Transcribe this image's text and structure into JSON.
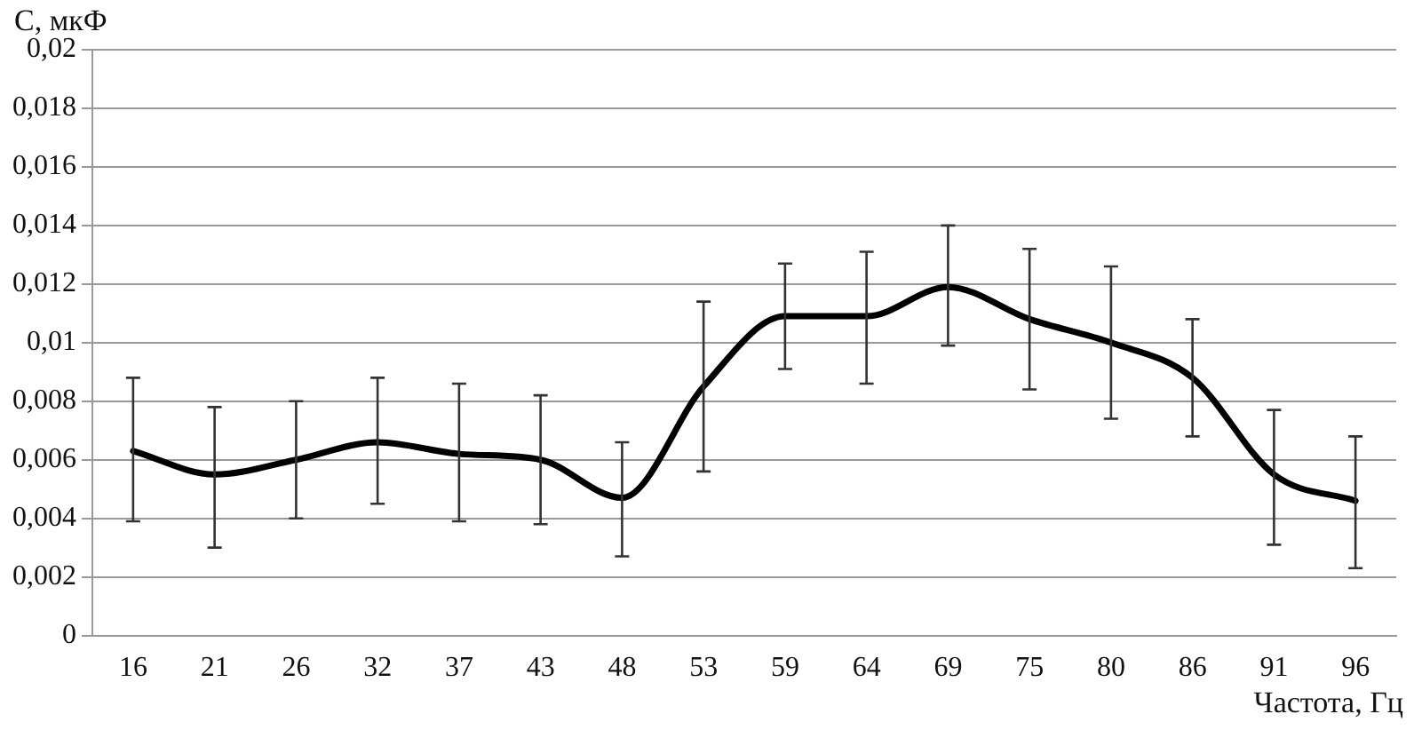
{
  "chart_data": {
    "type": "line",
    "xlabel": "Частота, Гц",
    "ylabel": "С, мкФ",
    "categories": [
      "16",
      "21",
      "26",
      "32",
      "37",
      "43",
      "48",
      "53",
      "59",
      "64",
      "69",
      "75",
      "80",
      "86",
      "91",
      "96"
    ],
    "series": [
      {
        "color": "#000000",
        "values": [
          0.0063,
          0.0055,
          0.006,
          0.0066,
          0.0062,
          0.006,
          0.0047,
          0.0085,
          0.0109,
          0.0109,
          0.0119,
          0.0108,
          0.01,
          0.0088,
          0.0055,
          0.0046
        ],
        "errors": [
          [
            0.0039,
            0.0088
          ],
          [
            0.003,
            0.0078
          ],
          [
            0.004,
            0.008
          ],
          [
            0.0045,
            0.0088
          ],
          [
            0.0039,
            0.0086
          ],
          [
            0.0038,
            0.0082
          ],
          [
            0.0027,
            0.0066
          ],
          [
            0.0056,
            0.0114
          ],
          [
            0.0091,
            0.0127
          ],
          [
            0.0086,
            0.0131
          ],
          [
            0.0099,
            0.014
          ],
          [
            0.0084,
            0.0132
          ],
          [
            0.0074,
            0.0126
          ],
          [
            0.0068,
            0.0108
          ],
          [
            0.0031,
            0.0077
          ],
          [
            0.0023,
            0.0068
          ]
        ]
      }
    ],
    "ylim": [
      0,
      0.02
    ],
    "yticks": [
      {
        "value": 0,
        "label": "0"
      },
      {
        "value": 0.002,
        "label": "0,002"
      },
      {
        "value": 0.004,
        "label": "0,004"
      },
      {
        "value": 0.006,
        "label": "0,006"
      },
      {
        "value": 0.008,
        "label": "0,008"
      },
      {
        "value": 0.01,
        "label": "0,01"
      },
      {
        "value": 0.012,
        "label": "0,012"
      },
      {
        "value": 0.014,
        "label": "0,014"
      },
      {
        "value": 0.016,
        "label": "0,016"
      },
      {
        "value": 0.018,
        "label": "0,018"
      },
      {
        "value": 0.02,
        "label": "0,02"
      }
    ],
    "grid": "y",
    "legend": false,
    "marker": "none",
    "line_style": "solid"
  }
}
